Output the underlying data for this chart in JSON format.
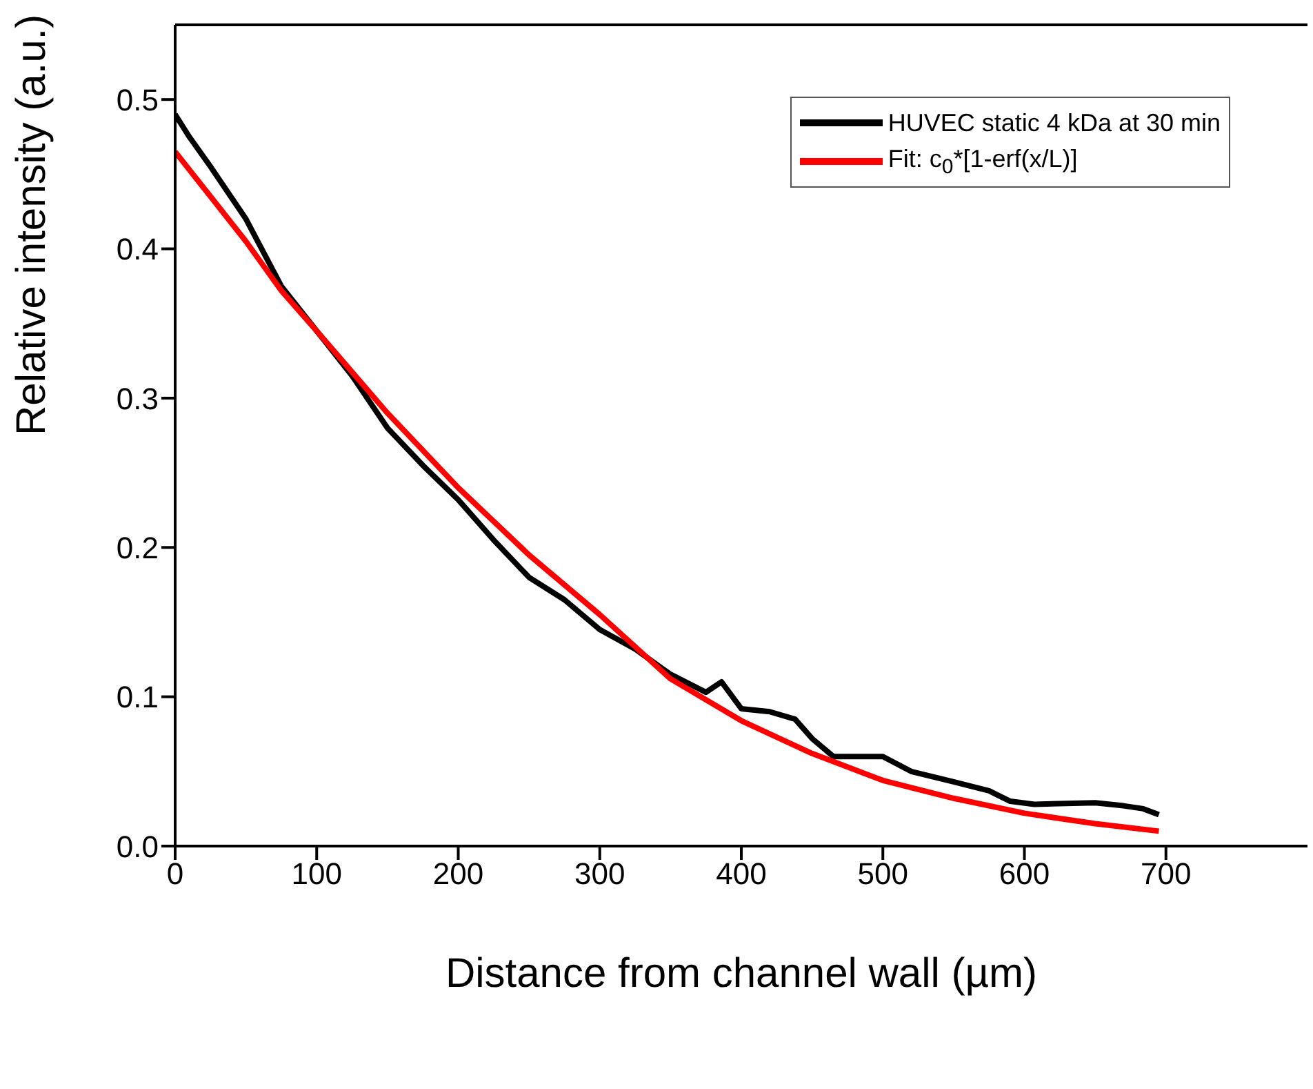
{
  "chart_data": {
    "type": "line",
    "xlabel": "Distance from channel wall (µm)",
    "ylabel": "Relative intensity (a.u.)",
    "xlim": [
      0,
      800
    ],
    "xticks": [
      0,
      100,
      200,
      300,
      400,
      500,
      600,
      700
    ],
    "ylim": [
      0,
      0.55
    ],
    "yticks": [
      {
        "value": 0,
        "label": "0.0"
      },
      0.1,
      0.2,
      0.3,
      0.4,
      0.5
    ],
    "legend": "top right",
    "grid": false,
    "marker": "none",
    "line_style": "solid",
    "series": [
      {
        "name": "HUVEC static 4 kDa at 30 min",
        "color": "#000000",
        "x": [
          0,
          10,
          25,
          50,
          75,
          100,
          125,
          150,
          175,
          200,
          225,
          250,
          275,
          300,
          325,
          350,
          375,
          386,
          400,
          420,
          438,
          450,
          465,
          480,
          500,
          520,
          550,
          575,
          590,
          607,
          650,
          670,
          684,
          695
        ],
        "values": [
          0.49,
          0.475,
          0.455,
          0.42,
          0.375,
          0.345,
          0.315,
          0.28,
          0.255,
          0.232,
          0.205,
          0.18,
          0.165,
          0.145,
          0.132,
          0.115,
          0.103,
          0.11,
          0.092,
          0.09,
          0.085,
          0.072,
          0.06,
          0.06,
          0.06,
          0.05,
          0.043,
          0.037,
          0.03,
          0.028,
          0.029,
          0.027,
          0.025,
          0.021
        ]
      },
      {
        "name": "Fit: c$_{0}$*[1-erf(x/L)]",
        "color": "#ff0000",
        "x": [
          0,
          25,
          50,
          75,
          100,
          150,
          200,
          250,
          300,
          350,
          400,
          450,
          500,
          550,
          600,
          650,
          695
        ],
        "values": [
          0.465,
          0.435,
          0.405,
          0.372,
          0.345,
          0.29,
          0.24,
          0.195,
          0.155,
          0.112,
          0.084,
          0.062,
          0.044,
          0.032,
          0.022,
          0.015,
          0.01
        ]
      }
    ]
  }
}
